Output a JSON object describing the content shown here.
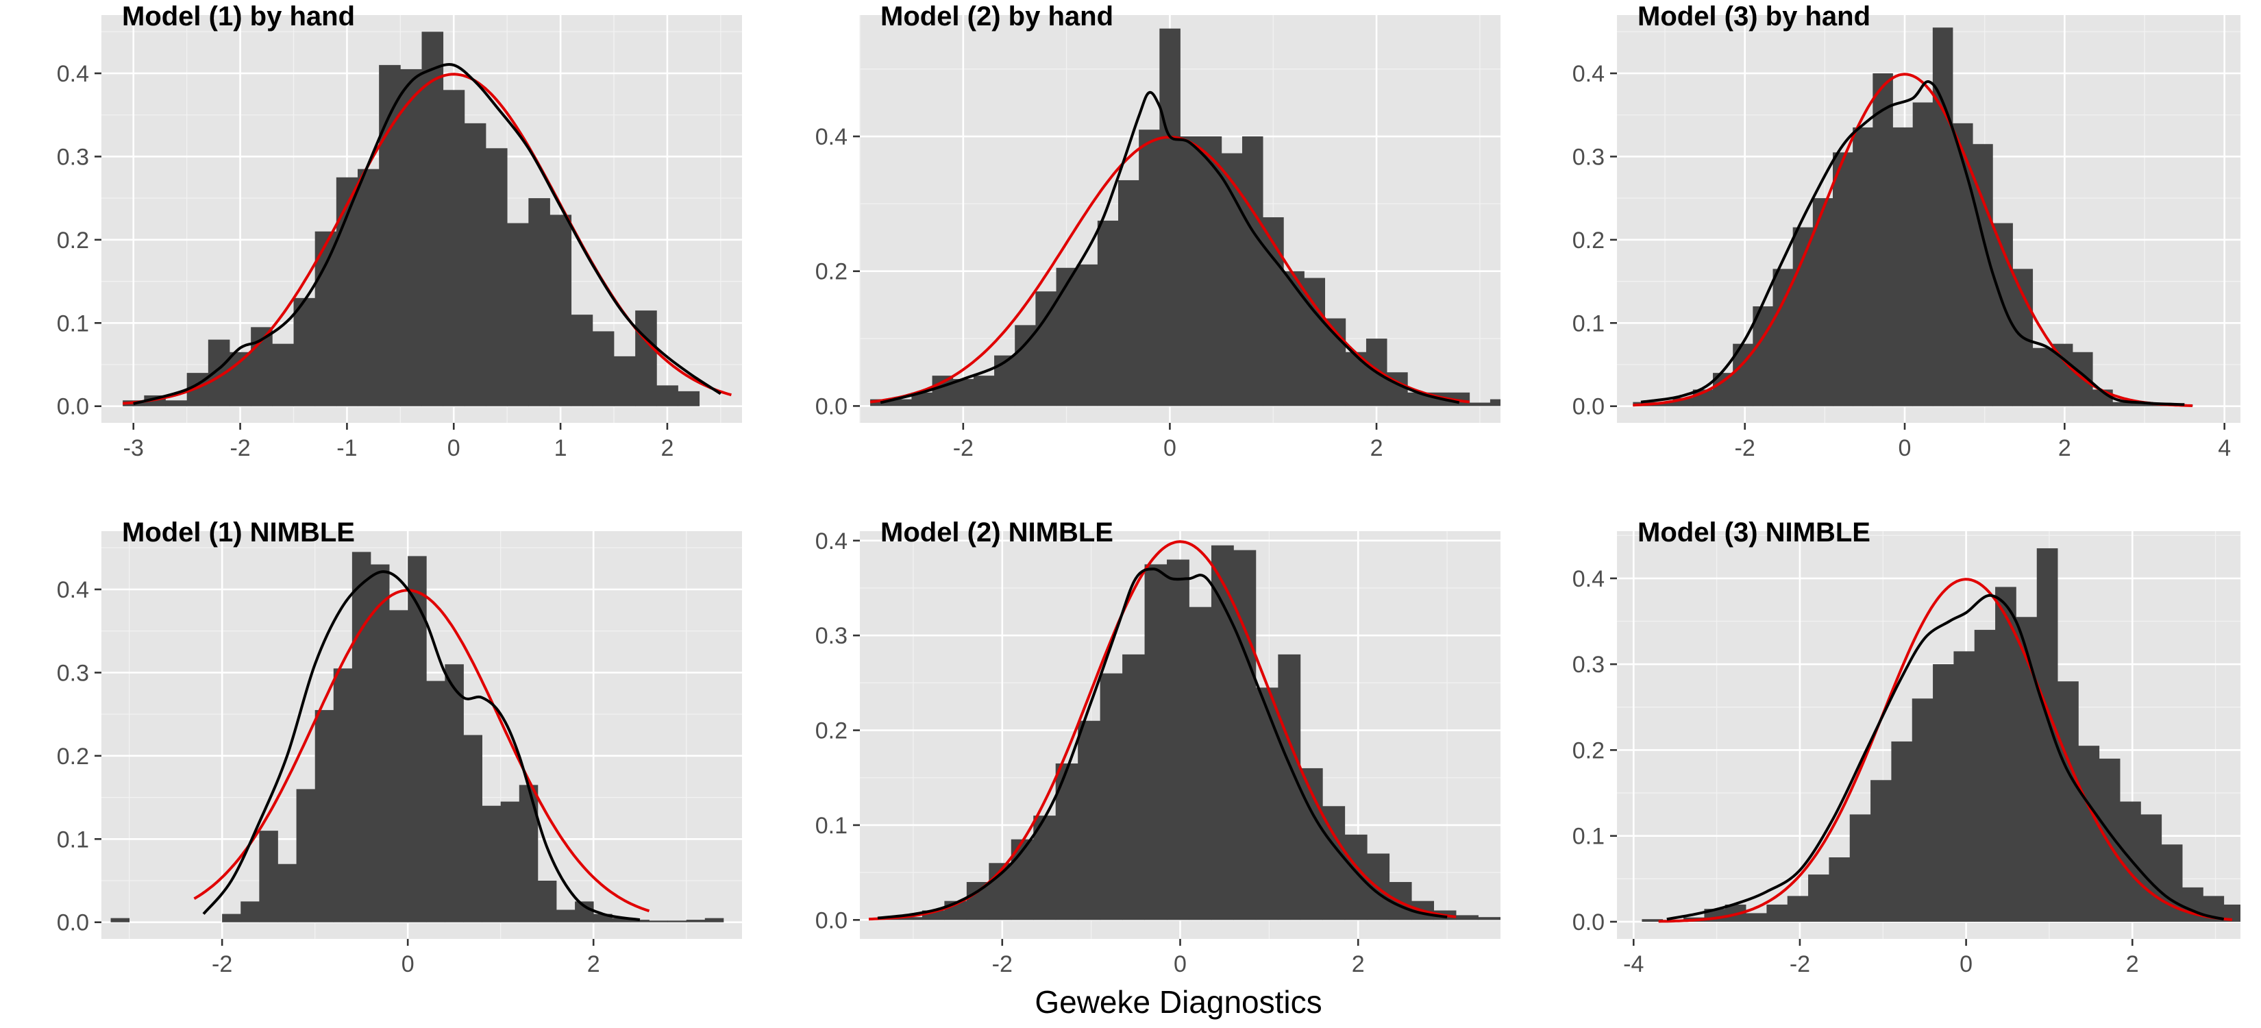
{
  "figure": {
    "xlabel": "Geweke Diagnostics",
    "colors": {
      "panel_background": "#e5e5e5",
      "histogram": "#444444",
      "empirical_density": "#000000",
      "normal_density": "#e00000"
    }
  },
  "chart_data": [
    {
      "type": "histogram",
      "title": "Model (1) by hand",
      "xlim": [
        -3.3,
        2.7
      ],
      "ylim": [
        -0.02,
        0.47
      ],
      "xticks": [
        -3,
        -2,
        -1,
        0,
        1,
        2
      ],
      "yticks": [
        "0.0",
        "0.1",
        "0.2",
        "0.3",
        "0.4"
      ],
      "bin_width": 0.2,
      "bin_start": -3.1,
      "counts": [
        0.007,
        0.013,
        0.007,
        0.04,
        0.08,
        0.065,
        0.095,
        0.075,
        0.13,
        0.21,
        0.275,
        0.285,
        0.41,
        0.405,
        0.45,
        0.38,
        0.34,
        0.31,
        0.22,
        0.25,
        0.23,
        0.11,
        0.09,
        0.06,
        0.115,
        0.025,
        0.018
      ],
      "density": {
        "x": [
          -3.0,
          -2.5,
          -2.2,
          -2.0,
          -1.8,
          -1.5,
          -1.2,
          -0.9,
          -0.6,
          -0.4,
          -0.2,
          0.0,
          0.2,
          0.4,
          0.7,
          1.0,
          1.3,
          1.6,
          1.9,
          2.2,
          2.5
        ],
        "y": [
          0.003,
          0.02,
          0.045,
          0.07,
          0.08,
          0.11,
          0.17,
          0.26,
          0.35,
          0.39,
          0.405,
          0.41,
          0.39,
          0.36,
          0.31,
          0.24,
          0.17,
          0.11,
          0.07,
          0.04,
          0.015
        ]
      },
      "normal": {
        "mean": 0,
        "sd": 1
      }
    },
    {
      "type": "histogram",
      "title": "Model (2) by hand",
      "xlim": [
        -3.0,
        3.2
      ],
      "ylim": [
        -0.025,
        0.58
      ],
      "xticks": [
        -2,
        0,
        2
      ],
      "yticks": [
        "0.0",
        "0.2",
        "0.4"
      ],
      "bin_width": 0.2,
      "bin_start": -2.9,
      "counts": [
        0.01,
        0.01,
        0.02,
        0.045,
        0.04,
        0.045,
        0.075,
        0.12,
        0.17,
        0.205,
        0.21,
        0.275,
        0.335,
        0.41,
        0.56,
        0.4,
        0.4,
        0.375,
        0.4,
        0.28,
        0.2,
        0.19,
        0.13,
        0.08,
        0.1,
        0.05,
        0.02,
        0.02,
        0.02,
        0.005,
        0.01
      ],
      "density": {
        "x": [
          -2.8,
          -2.4,
          -2.0,
          -1.6,
          -1.3,
          -1.0,
          -0.7,
          -0.5,
          -0.3,
          -0.2,
          -0.1,
          0.0,
          0.2,
          0.5,
          0.8,
          1.1,
          1.4,
          1.7,
          2.0,
          2.4,
          2.8
        ],
        "y": [
          0.005,
          0.02,
          0.04,
          0.065,
          0.11,
          0.18,
          0.26,
          0.34,
          0.43,
          0.465,
          0.445,
          0.4,
          0.39,
          0.34,
          0.26,
          0.2,
          0.14,
          0.09,
          0.05,
          0.02,
          0.005
        ]
      },
      "normal": {
        "mean": 0,
        "sd": 1
      }
    },
    {
      "type": "histogram",
      "title": "Model (3) by hand",
      "xlim": [
        -3.6,
        4.2
      ],
      "ylim": [
        -0.02,
        0.47
      ],
      "xticks": [
        -2,
        0,
        2,
        4
      ],
      "yticks": [
        "0.0",
        "0.1",
        "0.2",
        "0.3",
        "0.4"
      ],
      "bin_width": 0.25,
      "bin_start": -3.4,
      "counts": [
        0.005,
        0.005,
        0.01,
        0.02,
        0.04,
        0.075,
        0.12,
        0.165,
        0.215,
        0.25,
        0.305,
        0.335,
        0.4,
        0.335,
        0.365,
        0.455,
        0.34,
        0.315,
        0.22,
        0.165,
        0.07,
        0.075,
        0.065,
        0.02,
        0.005,
        0.005,
        0.003,
        0.002
      ],
      "density": {
        "x": [
          -3.3,
          -2.8,
          -2.4,
          -2.0,
          -1.6,
          -1.2,
          -0.8,
          -0.5,
          -0.2,
          0.1,
          0.3,
          0.5,
          0.8,
          1.1,
          1.4,
          1.8,
          2.2,
          2.6,
          3.0,
          3.5
        ],
        "y": [
          0.005,
          0.012,
          0.03,
          0.08,
          0.16,
          0.24,
          0.31,
          0.34,
          0.36,
          0.37,
          0.39,
          0.36,
          0.27,
          0.16,
          0.09,
          0.07,
          0.04,
          0.01,
          0.004,
          0.002
        ]
      },
      "normal": {
        "mean": 0,
        "sd": 1
      }
    },
    {
      "type": "histogram",
      "title": "Model (1) NIMBLE",
      "xlim": [
        -3.3,
        3.6
      ],
      "ylim": [
        -0.02,
        0.47
      ],
      "xticks": [
        -2,
        0,
        2
      ],
      "yticks": [
        "0.0",
        "0.1",
        "0.2",
        "0.3",
        "0.4"
      ],
      "bin_width": 0.2,
      "bin_start": -3.2,
      "counts": [
        0.005,
        0,
        0,
        0,
        0,
        0,
        0.01,
        0.025,
        0.11,
        0.07,
        0.16,
        0.255,
        0.305,
        0.445,
        0.43,
        0.375,
        0.44,
        0.29,
        0.31,
        0.225,
        0.14,
        0.145,
        0.165,
        0.05,
        0.015,
        0.025,
        0.01,
        0.005,
        0.003,
        0.002,
        0.002,
        0.003,
        0.005
      ],
      "density": {
        "x": [
          -2.2,
          -1.9,
          -1.6,
          -1.3,
          -1.0,
          -0.7,
          -0.4,
          -0.2,
          0.0,
          0.2,
          0.4,
          0.6,
          0.8,
          1.0,
          1.2,
          1.5,
          1.8,
          2.1,
          2.5
        ],
        "y": [
          0.01,
          0.05,
          0.12,
          0.2,
          0.31,
          0.38,
          0.415,
          0.42,
          0.4,
          0.36,
          0.3,
          0.27,
          0.27,
          0.25,
          0.2,
          0.09,
          0.03,
          0.01,
          0.003
        ]
      },
      "normal": {
        "mean": 0,
        "sd": 1
      }
    },
    {
      "type": "histogram",
      "title": "Model (2) NIMBLE",
      "xlim": [
        -3.6,
        3.6
      ],
      "ylim": [
        -0.02,
        0.41
      ],
      "xticks": [
        -2,
        0,
        2
      ],
      "yticks": [
        "0.0",
        "0.1",
        "0.2",
        "0.3",
        "0.4"
      ],
      "bin_width": 0.25,
      "bin_start": -3.4,
      "counts": [
        0.002,
        0.003,
        0.01,
        0.02,
        0.04,
        0.06,
        0.085,
        0.11,
        0.165,
        0.21,
        0.26,
        0.28,
        0.375,
        0.38,
        0.33,
        0.395,
        0.39,
        0.245,
        0.28,
        0.16,
        0.12,
        0.09,
        0.07,
        0.04,
        0.02,
        0.01,
        0.005,
        0.003
      ],
      "density": {
        "x": [
          -3.4,
          -3.0,
          -2.6,
          -2.2,
          -1.8,
          -1.4,
          -1.0,
          -0.7,
          -0.5,
          -0.3,
          -0.1,
          0.1,
          0.3,
          0.6,
          0.9,
          1.2,
          1.5,
          1.8,
          2.2,
          2.6,
          3.0
        ],
        "y": [
          0.002,
          0.006,
          0.015,
          0.035,
          0.07,
          0.13,
          0.23,
          0.31,
          0.36,
          0.37,
          0.36,
          0.36,
          0.36,
          0.31,
          0.24,
          0.17,
          0.11,
          0.07,
          0.03,
          0.01,
          0.003
        ]
      },
      "normal": {
        "mean": 0,
        "sd": 1
      }
    },
    {
      "type": "histogram",
      "title": "Model (3) NIMBLE",
      "xlim": [
        -4.2,
        3.3
      ],
      "ylim": [
        -0.02,
        0.455
      ],
      "xticks": [
        -4,
        -2,
        0,
        2
      ],
      "yticks": [
        "0.0",
        "0.1",
        "0.2",
        "0.3",
        "0.4"
      ],
      "bin_width": 0.25,
      "bin_start": -3.9,
      "counts": [
        0.003,
        0.002,
        0.005,
        0.015,
        0.02,
        0.01,
        0.02,
        0.03,
        0.055,
        0.075,
        0.125,
        0.165,
        0.21,
        0.26,
        0.3,
        0.315,
        0.34,
        0.39,
        0.355,
        0.435,
        0.28,
        0.205,
        0.19,
        0.14,
        0.125,
        0.09,
        0.04,
        0.03,
        0.02,
        0.005
      ],
      "density": {
        "x": [
          -3.6,
          -3.2,
          -2.8,
          -2.4,
          -2.0,
          -1.6,
          -1.2,
          -0.8,
          -0.5,
          -0.2,
          0.0,
          0.3,
          0.6,
          0.9,
          1.2,
          1.6,
          2.0,
          2.4,
          2.8,
          3.1
        ],
        "y": [
          0.003,
          0.01,
          0.02,
          0.035,
          0.06,
          0.12,
          0.2,
          0.28,
          0.33,
          0.35,
          0.36,
          0.38,
          0.35,
          0.26,
          0.18,
          0.12,
          0.07,
          0.03,
          0.01,
          0.003
        ]
      },
      "normal": {
        "mean": 0,
        "sd": 1
      }
    }
  ]
}
